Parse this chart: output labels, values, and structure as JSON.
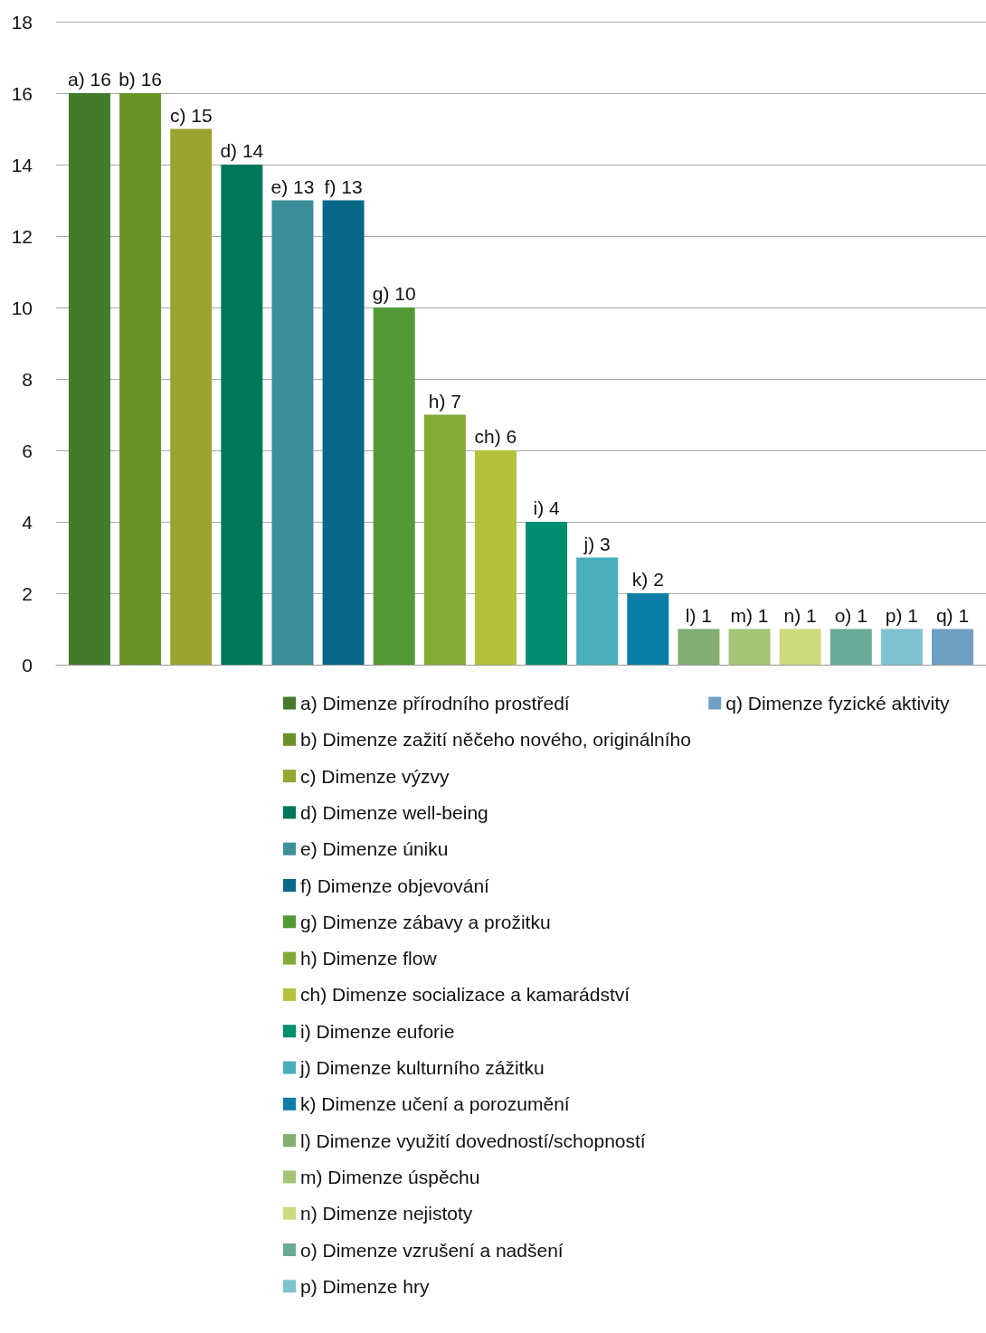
{
  "chart_data": {
    "type": "bar",
    "categories": [
      null
    ],
    "ylim": [
      0,
      18
    ],
    "yticks": [
      0,
      2,
      4,
      6,
      8,
      10,
      12,
      14,
      16,
      18
    ],
    "grid": "y",
    "legend": "bottom",
    "series": [
      {
        "name": "a) Dimenze přírodního prostředí",
        "color": "#437a2c",
        "values": [
          16
        ],
        "value_labels": [
          "a) 16"
        ]
      },
      {
        "name": "b) Dimenze zažití něčeho nového, originálního",
        "color": "#6b9428",
        "values": [
          16
        ],
        "value_labels": [
          "b) 16"
        ]
      },
      {
        "name": "c) Dimenze výzvy",
        "color": "#9aa530",
        "values": [
          15
        ],
        "value_labels": [
          "c) 15"
        ]
      },
      {
        "name": "d) Dimenze well-being",
        "color": "#00765a",
        "values": [
          14
        ],
        "value_labels": [
          "d) 14"
        ]
      },
      {
        "name": "e) Dimenze úniku",
        "color": "#3b8f99",
        "values": [
          13
        ],
        "value_labels": [
          "e) 13"
        ]
      },
      {
        "name": "f) Dimenze objevování",
        "color": "#076887",
        "values": [
          13
        ],
        "value_labels": [
          "f) 13"
        ]
      },
      {
        "name": "g) Dimenze zábavy a prožitku",
        "color": "#529a35",
        "values": [
          10
        ],
        "value_labels": [
          "g) 10"
        ]
      },
      {
        "name": "h) Dimenze flow",
        "color": "#82ab34",
        "values": [
          7
        ],
        "value_labels": [
          "h) 7"
        ]
      },
      {
        "name": "ch) Dimenze socializace a kamarádství",
        "color": "#b4c23a",
        "values": [
          6
        ],
        "value_labels": [
          "ch) 6"
        ]
      },
      {
        "name": "i) Dimenze euforie",
        "color": "#009070",
        "values": [
          4
        ],
        "value_labels": [
          "i) 4"
        ]
      },
      {
        "name": "j) Dimenze kulturního zážitku",
        "color": "#49aebb",
        "values": [
          3
        ],
        "value_labels": [
          "j) 3"
        ]
      },
      {
        "name": "k) Dimenze učení a porozumění",
        "color": "#0b7ea8",
        "values": [
          2
        ],
        "value_labels": [
          "k) 2"
        ]
      },
      {
        "name": "l) Dimenze využití dovedností/schopností",
        "color": "#82ae6f",
        "values": [
          1
        ],
        "value_labels": [
          "l) 1"
        ]
      },
      {
        "name": "m) Dimenze úspěchu",
        "color": "#a3c575",
        "values": [
          1
        ],
        "value_labels": [
          "m) 1"
        ]
      },
      {
        "name": "n) Dimenze nejistoty",
        "color": "#ccdb7c",
        "values": [
          1
        ],
        "value_labels": [
          "n) 1"
        ]
      },
      {
        "name": "o) Dimenze vzrušení a nadšení",
        "color": "#68ab98",
        "values": [
          1
        ],
        "value_labels": [
          "o) 1"
        ]
      },
      {
        "name": "p) Dimenze hry",
        "color": "#7ec3cf",
        "values": [
          1
        ],
        "value_labels": [
          "p) 1"
        ]
      },
      {
        "name": "q) Dimenze fyzické aktivity",
        "color": "#6fa0c4",
        "values": [
          1
        ],
        "value_labels": [
          "q) 1"
        ]
      }
    ]
  }
}
